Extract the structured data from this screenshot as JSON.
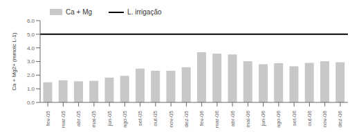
{
  "chart_data": {
    "type": "bar",
    "categories": [
      "fev-05",
      "mar-05",
      "abr-05",
      "mai-05",
      "jun-05",
      "ago-05",
      "set-05",
      "out-05",
      "nov-05",
      "dez-05",
      "fev-06",
      "mar-06",
      "abr-06",
      "mai-06",
      "jun-06",
      "ago-06",
      "set-06",
      "out-06",
      "nov-06",
      "dez-06"
    ],
    "series": [
      {
        "name": "Ca + Mg",
        "color": "#c8c8c8",
        "values": [
          1.48,
          1.62,
          1.55,
          1.58,
          1.82,
          1.95,
          2.48,
          2.32,
          2.32,
          2.58,
          3.68,
          3.58,
          3.52,
          3.02,
          2.8,
          2.88,
          2.65,
          2.9,
          3.02,
          2.95
        ]
      }
    ],
    "hline": {
      "name": "L. irrigação",
      "value": 5.0,
      "color": "#000000"
    },
    "ylabel": "Ca + Mg2+ (mmolc L-1)",
    "ylim": [
      0.0,
      6.0
    ],
    "yticks": [
      {
        "value": 0.0,
        "label": "0.0"
      },
      {
        "value": 1.0,
        "label": "1.0"
      },
      {
        "value": 2.0,
        "label": "2.0"
      },
      {
        "value": 3.0,
        "label": "3.0"
      },
      {
        "value": 4.0,
        "label": "4.0"
      },
      {
        "value": 5.0,
        "label": "5.0"
      },
      {
        "value": 6.0,
        "label": "6.0"
      }
    ],
    "grid": false,
    "legend": "top"
  }
}
